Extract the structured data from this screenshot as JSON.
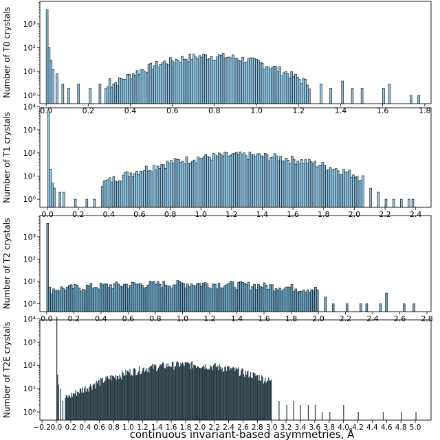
{
  "figure": {
    "xlabel_main": "continuous invariant-based asymmetries, Å"
  },
  "chart_data": [
    {
      "type": "bar",
      "scale_y": "log",
      "ylabel": "Number of T0 crystals",
      "xlim": [
        -0.03,
        1.83
      ],
      "ylim_decades": [
        0,
        4
      ],
      "xticks": [
        "0.0",
        "0.2",
        "0.4",
        "0.6",
        "0.8",
        "1.0",
        "1.2",
        "1.4",
        "1.6",
        "1.8"
      ],
      "xtick_values": [
        0,
        0.2,
        0.4,
        0.6,
        0.8,
        1.0,
        1.2,
        1.4,
        1.6,
        1.8
      ],
      "yticks": [
        "10⁰",
        "10¹",
        "10²",
        "10³"
      ],
      "bin_width": 0.0093,
      "bar_color": "#8fc7e6",
      "spikes": [
        [
          0.0,
          4000
        ],
        [
          0.0093,
          100
        ],
        [
          0.018,
          30
        ],
        [
          0.027,
          12
        ]
      ],
      "envelope": {
        "peak_x": 0.78,
        "peak": 45,
        "sigma": 0.2,
        "start": 0.28,
        "end": 1.25
      },
      "sparse": [
        [
          0.05,
          8
        ],
        [
          0.07,
          3
        ],
        [
          0.1,
          2
        ],
        [
          0.15,
          3
        ],
        [
          0.2,
          2
        ],
        [
          0.25,
          3
        ],
        [
          0.3,
          5
        ],
        [
          1.3,
          3
        ],
        [
          1.35,
          2
        ],
        [
          1.4,
          4
        ],
        [
          1.45,
          2
        ],
        [
          1.5,
          2
        ],
        [
          1.6,
          2
        ],
        [
          1.63,
          3
        ],
        [
          1.73,
          1
        ],
        [
          1.77,
          1
        ]
      ],
      "series": [
        {
          "values_note": "histogram"
        }
      ]
    },
    {
      "type": "bar",
      "scale_y": "log",
      "ylabel": "Number of T1 crystals",
      "xlim": [
        -0.05,
        2.5
      ],
      "ylim_decades": [
        0,
        4
      ],
      "xticks": [
        "0.0",
        "0.2",
        "0.4",
        "0.6",
        "0.8",
        "1.0",
        "1.2",
        "1.4",
        "1.6",
        "1.8",
        "2.0",
        "2.2",
        "2.4"
      ],
      "xtick_values": [
        0,
        0.2,
        0.4,
        0.6,
        0.8,
        1.0,
        1.2,
        1.4,
        1.6,
        1.8,
        2.0,
        2.2,
        2.4
      ],
      "yticks": [
        "10⁰",
        "10¹",
        "10²",
        "10³",
        "10⁴"
      ],
      "bin_width": 0.0125,
      "bar_color": "#8fc7e6",
      "spikes": [
        [
          0.0,
          7000
        ],
        [
          0.0125,
          20
        ],
        [
          0.025,
          5
        ],
        [
          0.04,
          3
        ]
      ],
      "envelope": {
        "peak_x": 1.25,
        "peak": 80,
        "sigma": 0.38,
        "start": 0.35,
        "end": 2.05
      },
      "sparse": [
        [
          0.08,
          2
        ],
        [
          0.1,
          2
        ],
        [
          0.18,
          1
        ],
        [
          0.25,
          1
        ],
        [
          0.3,
          1
        ],
        [
          2.1,
          3
        ],
        [
          2.15,
          2
        ],
        [
          2.2,
          1
        ],
        [
          2.25,
          1
        ],
        [
          2.3,
          1
        ],
        [
          2.35,
          1
        ],
        [
          2.38,
          1
        ]
      ],
      "series": [
        {
          "values_note": "histogram"
        }
      ]
    },
    {
      "type": "bar",
      "scale_y": "log",
      "ylabel": "Number of T2 crystals",
      "xlim": [
        -0.05,
        2.83
      ],
      "ylim_decades": [
        0,
        4
      ],
      "xticks": [
        "0.0",
        "0.2",
        "0.4",
        "0.6",
        "0.8",
        "1.0",
        "1.2",
        "1.4",
        "1.6",
        "1.8",
        "2.0",
        "2.2",
        "2.4",
        "2.6",
        "2.8"
      ],
      "xtick_values": [
        0,
        0.2,
        0.4,
        0.6,
        0.8,
        1.0,
        1.2,
        1.4,
        1.6,
        1.8,
        2.0,
        2.2,
        2.4,
        2.6,
        2.8
      ],
      "yticks": [
        "10⁰",
        "10¹",
        "10²",
        "10³"
      ],
      "bin_width": 0.0145,
      "bar_color": "#6ba4c4",
      "spikes": [
        [
          0.0,
          4000
        ]
      ],
      "envelope": {
        "peak_x": 1.0,
        "peak": 8,
        "sigma": 0.9,
        "start": 0.015,
        "end": 2.0
      },
      "sparse": [
        [
          2.05,
          2
        ],
        [
          2.1,
          1
        ],
        [
          2.2,
          1
        ],
        [
          2.3,
          1
        ],
        [
          2.35,
          1
        ],
        [
          2.45,
          1
        ],
        [
          2.5,
          3
        ],
        [
          2.62,
          1
        ],
        [
          2.7,
          1
        ]
      ],
      "series": [
        {
          "values_note": "histogram"
        }
      ]
    },
    {
      "type": "bar",
      "scale_y": "log",
      "ylabel": "Number of T2E crystals",
      "xlim": [
        -0.23,
        5.22
      ],
      "ylim_decades": [
        0,
        4
      ],
      "xticks": [
        "−0.2",
        "0.0",
        "0.2",
        "0.4",
        "0.6",
        "0.8",
        "1.0",
        "1.2",
        "1.4",
        "1.6",
        "1.8",
        "2.0",
        "2.2",
        "2.4",
        "2.6",
        "2.8",
        "3.0",
        "3.2",
        "3.4",
        "3.6",
        "3.8",
        "4.0",
        "4.2",
        "4.4",
        "4.6",
        "4.8",
        "5.0"
      ],
      "xtick_values": [
        -0.2,
        0,
        0.2,
        0.4,
        0.6,
        0.8,
        1.0,
        1.2,
        1.4,
        1.6,
        1.8,
        2.0,
        2.2,
        2.4,
        2.6,
        2.8,
        3.0,
        3.2,
        3.4,
        3.6,
        3.8,
        4.0,
        4.2,
        4.4,
        4.6,
        4.8,
        5.0
      ],
      "yticks": [
        "10⁰",
        "10¹",
        "10²",
        "10³",
        "10⁴"
      ],
      "bin_width": 0.012,
      "bar_color": "#263a44",
      "spikes": [
        [
          0.0,
          12000
        ],
        [
          0.012,
          40
        ],
        [
          0.024,
          15
        ]
      ],
      "envelope": {
        "peak_x": 1.8,
        "peak": 110,
        "sigma": 0.65,
        "start": 0.12,
        "end": 3.0
      },
      "sparse": [
        [
          0.05,
          10
        ],
        [
          0.08,
          3
        ],
        [
          3.1,
          3
        ],
        [
          3.2,
          2
        ],
        [
          3.3,
          3
        ],
        [
          3.4,
          2
        ],
        [
          3.5,
          2
        ],
        [
          3.6,
          2
        ],
        [
          3.7,
          1
        ],
        [
          3.8,
          1
        ],
        [
          4.0,
          2
        ],
        [
          4.2,
          1
        ],
        [
          4.55,
          1
        ],
        [
          4.8,
          1
        ],
        [
          5.0,
          1
        ]
      ],
      "series": [
        {
          "values_note": "histogram"
        }
      ]
    }
  ]
}
